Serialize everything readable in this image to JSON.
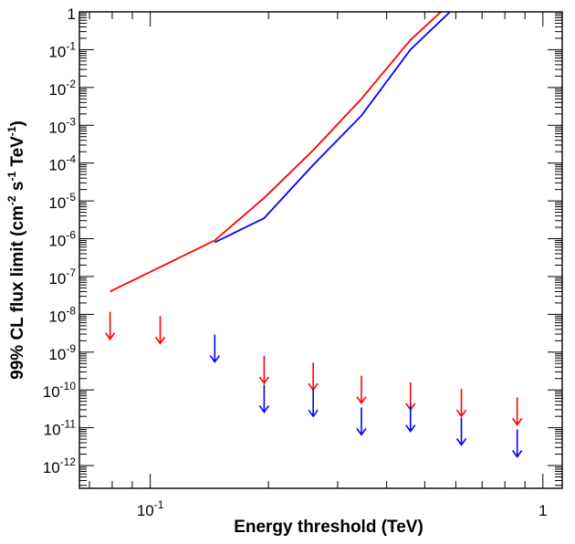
{
  "chart_data": {
    "type": "line",
    "title": "",
    "xlabel": "Energy threshold (TeV)",
    "ylabel": {
      "prefix": "99% CL flux limit (cm",
      "exp1": "-2",
      "mid1": " s",
      "exp2": "-1",
      "mid2": " TeV",
      "exp3": "-1",
      "suffix": ")"
    },
    "xscale": "log",
    "yscale": "log",
    "xlim": [
      0.066,
      1.12
    ],
    "ylim": [
      2.5e-13,
      1.0
    ],
    "grid": false,
    "legend": "none",
    "x_tick_labels": [
      {
        "value": 0.1,
        "base": "10",
        "exp": "-1"
      },
      {
        "value": 1.0,
        "base": "1",
        "exp": ""
      }
    ],
    "y_tick_labels": [
      {
        "value": 1.0,
        "base": "1",
        "exp": ""
      },
      {
        "value": 0.1,
        "base": "10",
        "exp": "-1"
      },
      {
        "value": 0.01,
        "base": "10",
        "exp": "-2"
      },
      {
        "value": 0.001,
        "base": "10",
        "exp": "-3"
      },
      {
        "value": 0.0001,
        "base": "10",
        "exp": "-4"
      },
      {
        "value": 1e-05,
        "base": "10",
        "exp": "-5"
      },
      {
        "value": 1e-06,
        "base": "10",
        "exp": "-6"
      },
      {
        "value": 1e-07,
        "base": "10",
        "exp": "-7"
      },
      {
        "value": 1e-08,
        "base": "10",
        "exp": "-8"
      },
      {
        "value": 1e-09,
        "base": "10",
        "exp": "-9"
      },
      {
        "value": 1e-10,
        "base": "10",
        "exp": "-10"
      },
      {
        "value": 1e-11,
        "base": "10",
        "exp": "-11"
      },
      {
        "value": 1e-12,
        "base": "10",
        "exp": "-12"
      }
    ],
    "series": [
      {
        "color": "#ff0000",
        "line_x": [
          0.079,
          0.146,
          0.195,
          0.26,
          0.345,
          0.46,
          0.55
        ],
        "line_y": [
          4e-08,
          9e-07,
          1.2e-05,
          0.00022,
          0.005,
          0.18,
          1.0
        ],
        "upper_limit_x": [
          0.079,
          0.106,
          0.195,
          0.26,
          0.345,
          0.46,
          0.62,
          0.86
        ],
        "upper_limit_y": [
          2.2e-09,
          1.7e-09,
          1.5e-10,
          1e-10,
          4.5e-11,
          3e-11,
          2e-11,
          1.2e-11
        ]
      },
      {
        "color": "#0000ff",
        "line_x": [
          0.146,
          0.195,
          0.26,
          0.345,
          0.46,
          0.58
        ],
        "line_y": [
          8e-07,
          3.5e-06,
          9e-05,
          0.0018,
          0.1,
          1.0
        ],
        "upper_limit_x": [
          0.146,
          0.195,
          0.26,
          0.345,
          0.46,
          0.62,
          0.86
        ],
        "upper_limit_y": [
          5.5e-10,
          2.6e-11,
          2e-11,
          6.5e-12,
          8e-12,
          3.5e-12,
          1.7e-12
        ]
      }
    ]
  }
}
